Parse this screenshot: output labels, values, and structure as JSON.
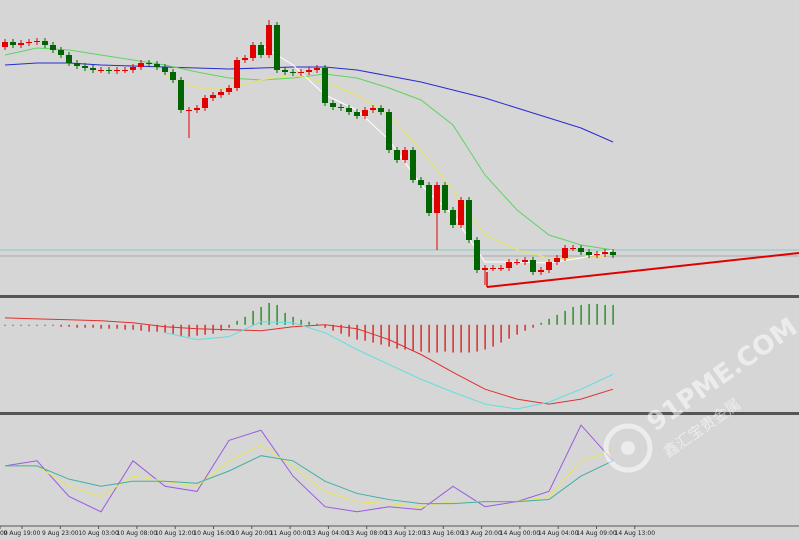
{
  "chart_data": [
    {
      "type": "candlestick",
      "up_color": "#e00000",
      "down_color": "#006400",
      "ylim": [
        0,
        295
      ],
      "open": [
        248,
        253,
        250,
        252,
        253,
        254,
        250,
        245,
        240,
        232,
        229,
        227,
        225,
        225,
        224,
        225,
        225,
        228,
        232,
        231,
        228,
        223,
        215,
        185,
        185,
        187,
        197,
        200,
        203,
        207,
        235,
        237,
        250,
        240,
        270,
        225,
        223,
        222,
        223,
        225,
        227,
        192,
        188,
        187,
        183,
        179,
        185,
        187,
        183,
        145,
        135,
        145,
        115,
        110,
        82,
        110,
        85,
        70,
        95,
        55,
        25,
        27,
        27,
        27,
        33,
        33,
        35,
        23,
        25,
        33,
        37,
        47,
        47,
        43,
        40,
        41,
        43
      ],
      "high": [
        256,
        256,
        255,
        256,
        257,
        257,
        253,
        248,
        243,
        235,
        232,
        230,
        228,
        228,
        228,
        228,
        231,
        235,
        235,
        234,
        231,
        226,
        218,
        188,
        190,
        200,
        203,
        206,
        210,
        238,
        240,
        253,
        253,
        275,
        273,
        228,
        226,
        226,
        228,
        230,
        230,
        195,
        191,
        190,
        186,
        188,
        190,
        190,
        186,
        148,
        148,
        148,
        118,
        113,
        113,
        113,
        88,
        98,
        98,
        58,
        30,
        30,
        30,
        36,
        36,
        38,
        38,
        28,
        36,
        40,
        50,
        50,
        50,
        46,
        44,
        46,
        46
      ],
      "low": [
        245,
        247,
        247,
        249,
        250,
        247,
        242,
        237,
        229,
        226,
        224,
        222,
        222,
        221,
        221,
        222,
        222,
        225,
        228,
        225,
        220,
        212,
        182,
        157,
        182,
        184,
        194,
        197,
        200,
        204,
        232,
        234,
        237,
        237,
        222,
        220,
        219,
        219,
        220,
        222,
        189,
        185,
        184,
        180,
        176,
        176,
        182,
        180,
        142,
        132,
        132,
        112,
        107,
        79,
        45,
        82,
        67,
        67,
        52,
        22,
        10,
        24,
        24,
        24,
        30,
        30,
        20,
        20,
        22,
        30,
        34,
        44,
        40,
        37,
        37,
        38,
        37
      ],
      "close": [
        253,
        250,
        252,
        253,
        254,
        250,
        245,
        240,
        232,
        229,
        227,
        225,
        225,
        224,
        225,
        225,
        228,
        232,
        231,
        228,
        223,
        215,
        185,
        185,
        187,
        197,
        200,
        203,
        207,
        235,
        237,
        250,
        240,
        270,
        225,
        223,
        222,
        223,
        225,
        227,
        192,
        188,
        187,
        183,
        179,
        185,
        187,
        183,
        145,
        135,
        145,
        115,
        110,
        82,
        110,
        85,
        70,
        95,
        55,
        25,
        27,
        27,
        27,
        33,
        33,
        35,
        23,
        25,
        33,
        37,
        47,
        47,
        43,
        40,
        41,
        43,
        40
      ],
      "line_x": [
        0,
        4,
        8,
        12,
        16,
        20,
        24,
        28,
        32,
        36,
        40,
        44,
        48,
        52,
        56,
        60,
        64,
        68,
        72,
        76
      ],
      "series": [
        {
          "color": "#2a2ad0",
          "values": [
            230,
            232,
            232,
            230,
            229,
            228,
            227,
            226,
            227,
            228,
            228,
            225,
            219,
            213,
            205,
            197,
            187,
            177,
            167,
            153
          ]
        },
        {
          "color": "#5fd35f",
          "values": [
            240,
            247,
            245,
            240,
            235,
            230,
            223,
            217,
            215,
            217,
            221,
            217,
            207,
            195,
            170,
            120,
            85,
            60,
            50,
            45
          ]
        },
        {
          "color": "#e6e65a",
          "values": [
            null,
            null,
            null,
            null,
            null,
            220,
            207,
            207,
            215,
            220,
            213,
            200,
            180,
            145,
            105,
            60,
            45,
            37,
            37,
            40
          ]
        },
        {
          "color": "#ffffff",
          "values": [
            null,
            null,
            null,
            null,
            null,
            null,
            null,
            null,
            250,
            230,
            200,
            185,
            155,
            110,
            80,
            33,
            33,
            32,
            37,
            45
          ]
        }
      ]
    },
    {
      "type": "macd",
      "up_color": "#008000",
      "down_color": "#e00000",
      "ylim": [
        -88,
        27
      ],
      "histogram": [
        0,
        0,
        0,
        0,
        0,
        -1,
        -1,
        -2,
        -2,
        -3,
        -3,
        -3,
        -4,
        -4,
        -4,
        -5,
        -5,
        -6,
        -7,
        -7,
        -8,
        -9,
        -12,
        -12,
        -11,
        -10,
        -9,
        -6,
        -3,
        4,
        8,
        14,
        18,
        22,
        20,
        12,
        8,
        5,
        3,
        1,
        -3,
        -6,
        -9,
        -12,
        -15,
        -16,
        -18,
        -20,
        -22,
        -24,
        -25,
        -26,
        -27,
        -28,
        -28,
        -27,
        -28,
        -28,
        -28,
        -27,
        -25,
        -22,
        -18,
        -14,
        -10,
        -6,
        -3,
        2,
        6,
        10,
        14,
        18,
        20,
        21,
        21,
        20,
        20
      ],
      "line_x": [
        0,
        4,
        8,
        12,
        16,
        20,
        24,
        28,
        32,
        36,
        40,
        44,
        48,
        52,
        56,
        60,
        64,
        68,
        72,
        76
      ],
      "series": [
        {
          "color": "#e03030",
          "values": [
            7,
            6,
            5,
            4,
            2,
            -2,
            -4,
            -5,
            -6,
            -2,
            0,
            -4,
            -15,
            -30,
            -48,
            -65,
            -75,
            -80,
            -75,
            -65
          ]
        },
        {
          "color": "#60dede",
          "values": [
            null,
            null,
            null,
            null,
            null,
            -8,
            -15,
            -12,
            3,
            2,
            -8,
            -25,
            -40,
            -55,
            -68,
            -80,
            -85,
            -78,
            -65,
            -50
          ]
        }
      ]
    },
    {
      "type": "line",
      "ylim": [
        0,
        100
      ],
      "line_x": [
        0,
        4,
        8,
        12,
        16,
        20,
        24,
        28,
        32,
        36,
        40,
        44,
        48,
        52,
        56,
        60,
        64,
        68,
        72,
        76
      ],
      "series": [
        {
          "color": "#9a5ae0",
          "values": [
            55,
            60,
            25,
            10,
            60,
            35,
            30,
            80,
            90,
            45,
            15,
            10,
            15,
            12,
            35,
            15,
            20,
            30,
            95,
            60
          ]
        },
        {
          "color": "#e6e65a",
          "values": [
            55,
            55,
            35,
            25,
            45,
            40,
            35,
            60,
            75,
            55,
            30,
            20,
            18,
            15,
            20,
            20,
            20,
            25,
            60,
            70
          ]
        },
        {
          "color": "#40b0a0",
          "values": [
            55,
            55,
            42,
            35,
            40,
            40,
            38,
            50,
            65,
            60,
            40,
            28,
            22,
            18,
            18,
            20,
            20,
            22,
            45,
            60
          ]
        }
      ],
      "time_labels": [
        "00",
        "9 Aug 19:00",
        "9 Aug 23:00",
        "10 Aug 03:00",
        "10 Aug 08:00",
        "10 Aug 12:00",
        "10 Aug 16:00",
        "10 Aug 20:00",
        "11 Aug 00:00",
        "13 Aug 04:00",
        "13 Aug 08:00",
        "13 Aug 12:00",
        "13 Aug 16:00",
        "13 Aug 20:00",
        "14 Aug 00:00",
        "14 Aug 04:00",
        "14 Aug 09:00",
        "14 Aug 13:00"
      ]
    }
  ],
  "watermark": {
    "site": "91PME.COM",
    "name": "鑫汇宝贵金属"
  }
}
